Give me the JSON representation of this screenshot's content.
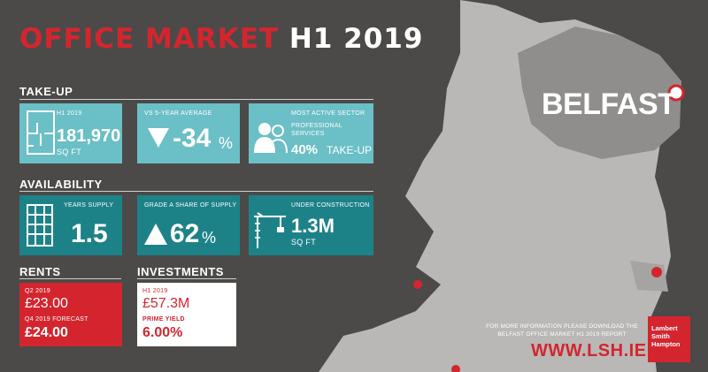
{
  "title": {
    "part1": "OFFICE MARKET",
    "part2": "H1 2019"
  },
  "map": {
    "city_label": "BELFAST"
  },
  "takeup": {
    "heading": "TAKE-UP",
    "h1": {
      "label": "H1 2019",
      "value": "181,970",
      "unit": "SQ FT"
    },
    "vs5": {
      "label": "VS 5-YEAR AVERAGE",
      "value": "-34",
      "pct": "%"
    },
    "sector": {
      "label": "MOST ACTIVE SECTOR",
      "name_line1": "PROFESSIONAL",
      "name_line2": "SERVICES",
      "value": "40%",
      "suffix": "TAKE-UP"
    }
  },
  "availability": {
    "heading": "AVAILABILITY",
    "years": {
      "label": "YEARS SUPPLY",
      "value": "1.5"
    },
    "grade": {
      "label": "GRADE A SHARE OF SUPPLY",
      "value": "62",
      "pct": "%"
    },
    "construction": {
      "label": "UNDER CONSTRUCTION",
      "value": "1.3M",
      "unit": "SQ FT"
    }
  },
  "rents": {
    "heading": "RENTS",
    "q2_label": "Q2 2019",
    "q2_value": "£23.00",
    "q4_label": "Q4 2019 FORECAST",
    "q4_value": "£24.00"
  },
  "investments": {
    "heading": "INVESTMENTS",
    "h1_label": "H1 2019",
    "h1_value": "£57.3M",
    "yield_label": "PRIME YIELD",
    "yield_value": "6.00%"
  },
  "footer": {
    "info_line1": "FOR MORE INFORMATION PLEASE DOWNLOAD THE",
    "info_line2": "BELFAST OFFICE MARKET H1 2019 REPORT",
    "url": "WWW.LSH.IE",
    "logo_line1": "Lambert",
    "logo_line2": "Smith",
    "logo_line3": "Hampton"
  },
  "colors": {
    "accent_red": "#d4252f",
    "teal_light": "#6bbfc6",
    "teal_dark": "#1d8288",
    "background": "#4b4a48"
  }
}
